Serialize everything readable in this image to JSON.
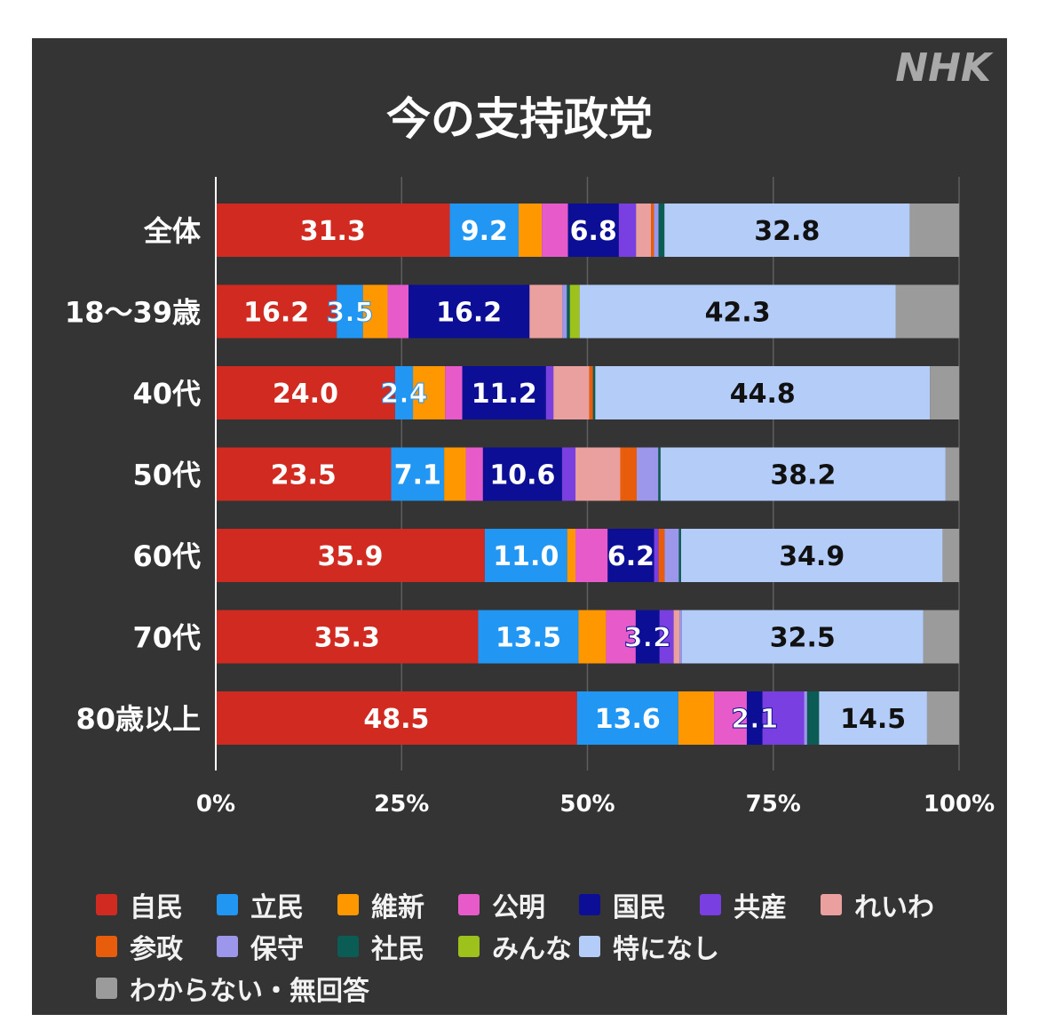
{
  "logo_text": "NHK",
  "chart_data": {
    "type": "bar",
    "orientation": "horizontal",
    "stacked": true,
    "title": "今の支持政党",
    "categories": [
      "全体",
      "18～39歳",
      "40代",
      "50代",
      "60代",
      "70代",
      "80歳以上"
    ],
    "x_ticks": [
      "0%",
      "25%",
      "50%",
      "75%",
      "100%"
    ],
    "xlim": [
      0,
      100
    ],
    "grid": true,
    "legend_position": "bottom",
    "series": [
      {
        "name": "自民",
        "color": "#d02a21",
        "values": [
          31.3,
          16.2,
          24.0,
          23.5,
          35.9,
          35.3,
          48.5
        ]
      },
      {
        "name": "立民",
        "color": "#2196f3",
        "values": [
          9.2,
          3.5,
          2.4,
          7.1,
          11.0,
          13.5,
          13.6
        ]
      },
      {
        "name": "維新",
        "color": "#ff9800",
        "values": [
          3.1,
          3.3,
          4.3,
          2.9,
          1.1,
          3.7,
          4.8
        ]
      },
      {
        "name": "公明",
        "color": "#e65ac9",
        "values": [
          3.5,
          2.8,
          2.3,
          2.3,
          4.3,
          4.0,
          4.4
        ]
      },
      {
        "name": "国民",
        "color": "#0c0f96",
        "values": [
          6.8,
          16.2,
          11.2,
          10.6,
          6.2,
          3.2,
          2.1
        ]
      },
      {
        "name": "共産",
        "color": "#7a3fe0",
        "values": [
          2.3,
          0.0,
          1.0,
          1.8,
          0.6,
          1.9,
          5.6
        ]
      },
      {
        "name": "れいわ",
        "color": "#eba0a0",
        "values": [
          2.0,
          4.4,
          4.8,
          6.0,
          0.0,
          0.8,
          0.0
        ]
      },
      {
        "name": "参政",
        "color": "#e85d0b",
        "values": [
          0.4,
          0.0,
          0.5,
          2.2,
          0.8,
          0.0,
          0.0
        ]
      },
      {
        "name": "保守",
        "color": "#9d97ec",
        "values": [
          0.6,
          0.6,
          0.0,
          2.9,
          1.9,
          0.3,
          0.4
        ]
      },
      {
        "name": "社民",
        "color": "#0c5c56",
        "values": [
          0.8,
          0.4,
          0.3,
          0.3,
          0.3,
          0.0,
          1.6
        ]
      },
      {
        "name": "みんな",
        "color": "#9ec21c",
        "values": [
          0.0,
          1.3,
          0.0,
          0.0,
          0.0,
          0.0,
          0.0
        ]
      },
      {
        "name": "特になし",
        "color": "#b4ccf8",
        "values": [
          32.8,
          42.3,
          44.8,
          38.2,
          34.9,
          32.5,
          14.5
        ]
      },
      {
        "name": "わからない・無回答",
        "color": "#9b9b9b",
        "values": [
          6.6,
          8.5,
          3.9,
          1.8,
          2.2,
          4.8,
          4.3
        ]
      }
    ],
    "data_labels": [
      {
        "category": 0,
        "series": 0,
        "text": "31.3"
      },
      {
        "category": 0,
        "series": 1,
        "text": "9.2"
      },
      {
        "category": 0,
        "series": 4,
        "text": "6.8"
      },
      {
        "category": 0,
        "series": 11,
        "text": "32.8"
      },
      {
        "category": 1,
        "series": 0,
        "text": "16.2"
      },
      {
        "category": 1,
        "series": 1,
        "text": "3.5"
      },
      {
        "category": 1,
        "series": 4,
        "text": "16.2"
      },
      {
        "category": 1,
        "series": 11,
        "text": "42.3"
      },
      {
        "category": 2,
        "series": 0,
        "text": "24.0"
      },
      {
        "category": 2,
        "series": 1,
        "text": "2.4"
      },
      {
        "category": 2,
        "series": 4,
        "text": "11.2"
      },
      {
        "category": 2,
        "series": 11,
        "text": "44.8"
      },
      {
        "category": 3,
        "series": 0,
        "text": "23.5"
      },
      {
        "category": 3,
        "series": 1,
        "text": "7.1"
      },
      {
        "category": 3,
        "series": 4,
        "text": "10.6"
      },
      {
        "category": 3,
        "series": 11,
        "text": "38.2"
      },
      {
        "category": 4,
        "series": 0,
        "text": "35.9"
      },
      {
        "category": 4,
        "series": 1,
        "text": "11.0"
      },
      {
        "category": 4,
        "series": 4,
        "text": "6.2"
      },
      {
        "category": 4,
        "series": 11,
        "text": "34.9"
      },
      {
        "category": 5,
        "series": 0,
        "text": "35.3"
      },
      {
        "category": 5,
        "series": 1,
        "text": "13.5"
      },
      {
        "category": 5,
        "series": 4,
        "text": "3.2"
      },
      {
        "category": 5,
        "series": 11,
        "text": "32.5"
      },
      {
        "category": 6,
        "series": 0,
        "text": "48.5"
      },
      {
        "category": 6,
        "series": 1,
        "text": "13.6"
      },
      {
        "category": 6,
        "series": 4,
        "text": "2.1"
      },
      {
        "category": 6,
        "series": 11,
        "text": "14.5"
      }
    ]
  }
}
